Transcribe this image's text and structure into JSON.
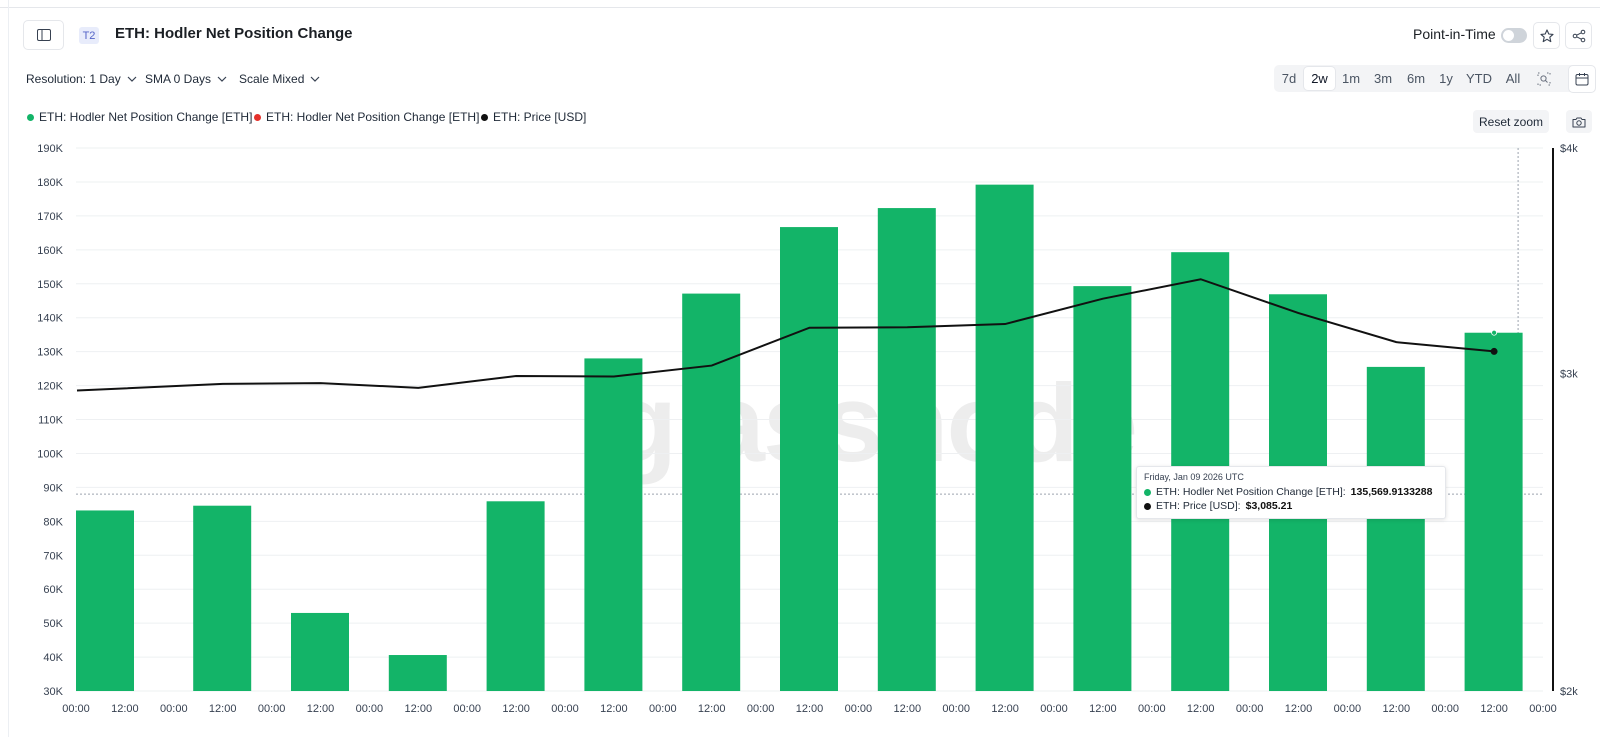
{
  "header": {
    "tier_badge": "T2",
    "title": "ETH: Hodler Net Position Change",
    "point_in_time_label": "Point-in-Time"
  },
  "toolbar": {
    "resolution": "Resolution: 1 Day",
    "sma": "SMA 0 Days",
    "scale": "Scale Mixed",
    "ranges": [
      "7d",
      "2w",
      "1m",
      "3m",
      "6m",
      "1y",
      "YTD",
      "All"
    ],
    "active_range": "2w",
    "reset_zoom": "Reset zoom"
  },
  "legend": [
    {
      "label": "ETH: Hodler Net Position Change [ETH]",
      "color": "#13b468"
    },
    {
      "label": "ETH: Hodler Net Position Change [ETH]",
      "color": "#e5312b"
    },
    {
      "label": "ETH: Price [USD]",
      "color": "#111111"
    }
  ],
  "watermark": "glassnode",
  "tooltip": {
    "date": "Friday, Jan 09 2026 UTC",
    "series1_label": "ETH: Hodler Net Position Change [ETH]:",
    "series1_value": "135,569.9133288",
    "series2_label": "ETH: Price [USD]:",
    "series2_value": "$3,085.21"
  },
  "chart_data": {
    "type": "bar",
    "title": "ETH: Hodler Net Position Change",
    "xlabel": "",
    "ylabel": "",
    "x_tick_labels": [
      "00:00",
      "12:00",
      "00:00",
      "12:00",
      "00:00",
      "12:00",
      "00:00",
      "12:00",
      "00:00",
      "12:00",
      "00:00",
      "12:00",
      "00:00",
      "12:00",
      "00:00",
      "12:00",
      "00:00",
      "12:00",
      "00:00",
      "12:00",
      "00:00",
      "12:00",
      "00:00",
      "12:00",
      "00:00",
      "12:00",
      "00:00",
      "12:00",
      "00:00",
      "12:00",
      "00:00"
    ],
    "left_axis": {
      "ticks": [
        "30K",
        "40K",
        "50K",
        "60K",
        "70K",
        "80K",
        "90K",
        "100K",
        "110K",
        "120K",
        "130K",
        "140K",
        "150K",
        "160K",
        "170K",
        "180K",
        "190K"
      ],
      "ylim": [
        30000,
        190000
      ]
    },
    "right_axis": {
      "ticks": [
        "$2k",
        "$3k",
        "$4k"
      ],
      "ylim": [
        2000,
        4000
      ],
      "scale": "log"
    },
    "series": [
      {
        "name": "ETH: Hodler Net Position Change [ETH]",
        "type": "bar",
        "color": "#13b468",
        "values": [
          83200,
          84600,
          53000,
          40600,
          85900,
          128000,
          147100,
          166700,
          172300,
          179200,
          149300,
          159300,
          146900,
          125500,
          135569.91
        ]
      },
      {
        "name": "ETH: Price [USD]",
        "type": "line",
        "color": "#111111",
        "values": [
          2935,
          2960,
          2963,
          2945,
          2990,
          2988,
          3030,
          3180,
          3182,
          3195,
          3300,
          3383,
          3240,
          3122,
          3085.21
        ]
      }
    ],
    "hover_reference_value": 88000
  }
}
